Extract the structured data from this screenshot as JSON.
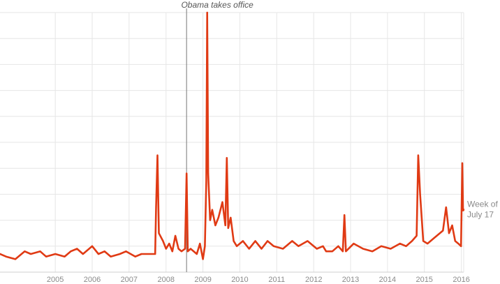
{
  "chart_data": {
    "type": "line",
    "title": "",
    "xlabel": "",
    "ylabel": "",
    "x_ticks": [
      "2005",
      "2006",
      "2007",
      "2008",
      "2009",
      "2010",
      "2011",
      "2012",
      "2013",
      "2014",
      "2015",
      "2016"
    ],
    "xlim": [
      "2004-01-01",
      "2016-07-24"
    ],
    "ylim": [
      0,
      100
    ],
    "grid": true,
    "series_color": "#e03a14",
    "annotations": [
      {
        "date": "2009-01-20",
        "label": "Obama takes office"
      }
    ],
    "end_label": {
      "line1": "Week of",
      "line2": "July 17"
    },
    "series": [
      {
        "name": "",
        "points": [
          [
            "2004-01-01",
            7
          ],
          [
            "2004-03-01",
            6
          ],
          [
            "2004-06-01",
            5
          ],
          [
            "2004-09-01",
            8
          ],
          [
            "2004-11-01",
            7
          ],
          [
            "2005-02-01",
            8
          ],
          [
            "2005-04-01",
            6
          ],
          [
            "2005-07-01",
            7
          ],
          [
            "2005-10-01",
            6
          ],
          [
            "2005-12-01",
            8
          ],
          [
            "2006-02-01",
            9
          ],
          [
            "2006-04-01",
            7
          ],
          [
            "2006-07-01",
            10
          ],
          [
            "2006-09-01",
            7
          ],
          [
            "2006-11-01",
            8
          ],
          [
            "2007-01-01",
            6
          ],
          [
            "2007-04-01",
            7
          ],
          [
            "2007-06-01",
            8
          ],
          [
            "2007-09-01",
            6
          ],
          [
            "2007-11-01",
            7
          ],
          [
            "2008-01-01",
            7
          ],
          [
            "2008-03-15",
            7
          ],
          [
            "2008-03-24",
            25
          ],
          [
            "2008-04-07",
            45
          ],
          [
            "2008-04-21",
            15
          ],
          [
            "2008-06-01",
            12
          ],
          [
            "2008-07-01",
            9
          ],
          [
            "2008-08-01",
            11
          ],
          [
            "2008-09-01",
            8
          ],
          [
            "2008-10-01",
            14
          ],
          [
            "2008-11-01",
            9
          ],
          [
            "2008-12-01",
            8
          ],
          [
            "2009-01-05",
            9
          ],
          [
            "2009-01-20",
            38
          ],
          [
            "2009-02-01",
            8
          ],
          [
            "2009-03-01",
            9
          ],
          [
            "2009-04-01",
            8
          ],
          [
            "2009-05-01",
            7
          ],
          [
            "2009-06-01",
            11
          ],
          [
            "2009-07-01",
            5
          ],
          [
            "2009-07-20",
            10
          ],
          [
            "2009-08-03",
            35
          ],
          [
            "2009-08-12",
            100
          ],
          [
            "2009-08-22",
            38
          ],
          [
            "2009-09-10",
            20
          ],
          [
            "2009-10-01",
            24
          ],
          [
            "2009-11-01",
            18
          ],
          [
            "2009-12-01",
            21
          ],
          [
            "2010-01-10",
            27
          ],
          [
            "2010-02-08",
            18
          ],
          [
            "2010-02-22",
            44
          ],
          [
            "2010-03-08",
            17
          ],
          [
            "2010-04-01",
            21
          ],
          [
            "2010-05-01",
            12
          ],
          [
            "2010-06-01",
            10
          ],
          [
            "2010-08-01",
            12
          ],
          [
            "2010-10-01",
            9
          ],
          [
            "2010-12-01",
            12
          ],
          [
            "2011-02-01",
            9
          ],
          [
            "2011-04-01",
            12
          ],
          [
            "2011-06-01",
            10
          ],
          [
            "2011-09-01",
            9
          ],
          [
            "2011-12-01",
            12
          ],
          [
            "2012-02-01",
            10
          ],
          [
            "2012-05-01",
            12
          ],
          [
            "2012-08-01",
            9
          ],
          [
            "2012-10-01",
            10
          ],
          [
            "2012-11-01",
            8
          ],
          [
            "2013-01-01",
            8
          ],
          [
            "2013-03-01",
            10
          ],
          [
            "2013-04-15",
            8
          ],
          [
            "2013-05-01",
            22
          ],
          [
            "2013-05-15",
            8
          ],
          [
            "2013-08-01",
            11
          ],
          [
            "2013-11-01",
            9
          ],
          [
            "2014-02-01",
            8
          ],
          [
            "2014-05-01",
            10
          ],
          [
            "2014-08-01",
            9
          ],
          [
            "2014-11-01",
            11
          ],
          [
            "2015-01-01",
            10
          ],
          [
            "2015-03-01",
            12
          ],
          [
            "2015-04-15",
            14
          ],
          [
            "2015-05-01",
            45
          ],
          [
            "2015-05-20",
            30
          ],
          [
            "2015-06-20",
            12
          ],
          [
            "2015-08-01",
            11
          ],
          [
            "2015-10-01",
            13
          ],
          [
            "2016-01-01",
            16
          ],
          [
            "2016-02-01",
            25
          ],
          [
            "2016-03-01",
            15
          ],
          [
            "2016-04-01",
            18
          ],
          [
            "2016-05-01",
            12
          ],
          [
            "2016-06-01",
            11
          ],
          [
            "2016-06-28",
            10
          ],
          [
            "2016-07-10",
            42
          ],
          [
            "2016-07-17",
            24
          ]
        ]
      }
    ]
  }
}
